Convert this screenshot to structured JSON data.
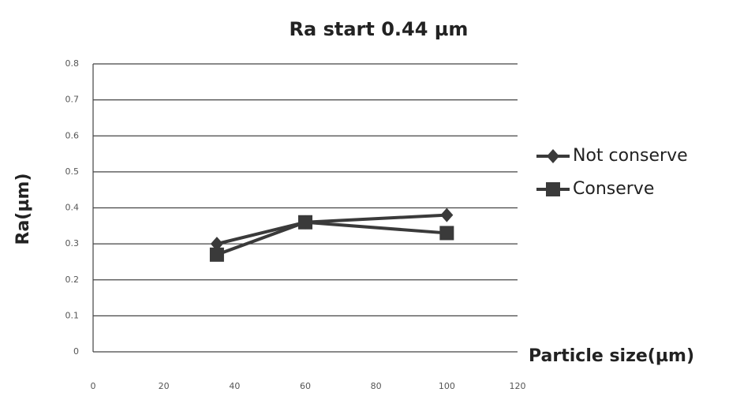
{
  "chart_data": {
    "type": "line",
    "title": "Ra start 0.44 µm",
    "x_label": "Particle size(µm)",
    "y_label": "Ra(µm)",
    "x": [
      35,
      60,
      100
    ],
    "series": [
      {
        "name": "Not conserve",
        "color": "#3a3a3a",
        "marker": "diamond",
        "values": [
          0.3,
          0.36,
          0.38
        ]
      },
      {
        "name": "Conserve",
        "color": "#3a3a3a",
        "marker": "square",
        "values": [
          0.27,
          0.36,
          0.33
        ]
      }
    ],
    "xlim": [
      0,
      120
    ],
    "xticks": [
      0,
      20,
      40,
      60,
      80,
      100,
      120
    ],
    "ylim": [
      0,
      0.8
    ],
    "yticks": [
      0,
      0.1,
      0.2,
      0.3,
      0.4,
      0.5,
      0.6,
      0.7,
      0.8
    ],
    "grid": true,
    "legend": "right"
  }
}
